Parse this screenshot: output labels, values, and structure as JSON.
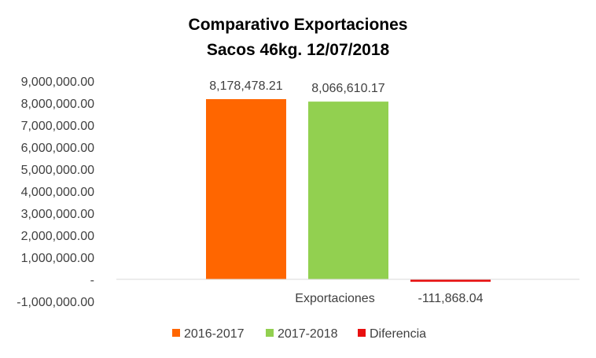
{
  "chart_data": {
    "type": "bar",
    "title": [
      "Comparativo  Exportaciones",
      "Sacos 46kg. 12/07/2018"
    ],
    "categories": [
      "Exportaciones"
    ],
    "series": [
      {
        "name": "2016-2017",
        "values": [
          8178478.21
        ],
        "label": "8,178,478.21",
        "color": "#ff6600"
      },
      {
        "name": "2017-2018",
        "values": [
          8066610.17
        ],
        "label": "8,066,610.17",
        "color": "#92d050"
      },
      {
        "name": "Diferencia",
        "values": [
          -111868.04
        ],
        "label": "-111,868.04",
        "color": "#e81010"
      }
    ],
    "ylim": [
      -1000000,
      9000000
    ],
    "yticks": [
      {
        "value": 9000000,
        "label": "9,000,000.00"
      },
      {
        "value": 8000000,
        "label": "8,000,000.00"
      },
      {
        "value": 7000000,
        "label": "7,000,000.00"
      },
      {
        "value": 6000000,
        "label": "6,000,000.00"
      },
      {
        "value": 5000000,
        "label": "5,000,000.00"
      },
      {
        "value": 4000000,
        "label": "4,000,000.00"
      },
      {
        "value": 3000000,
        "label": "3,000,000.00"
      },
      {
        "value": 2000000,
        "label": "2,000,000.00"
      },
      {
        "value": 1000000,
        "label": "1,000,000.00"
      },
      {
        "value": 0,
        "label": "-"
      },
      {
        "value": -1000000,
        "label": "-1,000,000.00"
      }
    ],
    "grid": false,
    "legend_position": "bottom",
    "xlabel": "",
    "ylabel": ""
  }
}
